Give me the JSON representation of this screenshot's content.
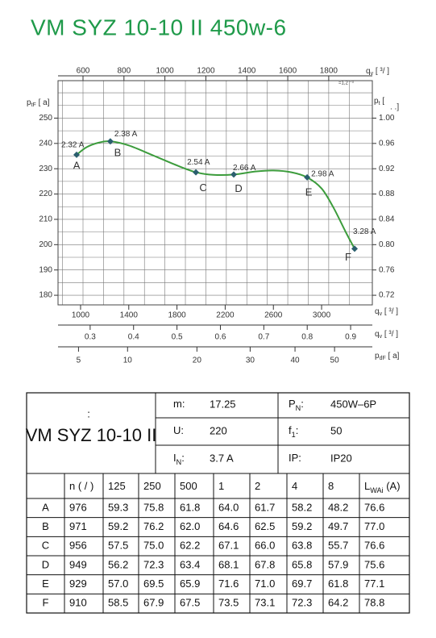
{
  "title": "VM SYZ 10-10 II 450w-6",
  "chart_data": {
    "type": "line",
    "x_top": {
      "label": {
        "main": "q",
        "sub": "v",
        "rest": " [    ³/     ]"
      },
      "note": "=1,2   ⁻³",
      "xlim": [
        478,
        2013
      ],
      "xticks": [
        600,
        800,
        1000,
        1200,
        1400,
        1600,
        1800
      ],
      "minor_xticks": [
        500,
        700,
        900,
        1100,
        1300,
        1500,
        1700,
        1900
      ]
    },
    "x_bottom": [
      {
        "label": {
          "main": "q",
          "sub": "v",
          "rest": " [    ³/   ]"
        },
        "xlim": [
          813,
          3421
        ],
        "xticks": [
          1000,
          1400,
          1800,
          2200,
          2600,
          3000
        ]
      },
      {
        "label": {
          "main": "q",
          "sub": "v",
          "rest": " [    ³/   ]"
        },
        "xlim": [
          0.226,
          0.95
        ],
        "xticks": [
          0.3,
          0.4,
          0.5,
          0.6,
          0.7,
          0.8,
          0.9
        ]
      },
      {
        "label": {
          "main": "p",
          "sub": "dF",
          "rest": " [   a]"
        },
        "xlim": [
          3.42,
          60.6
        ],
        "scale": "sqrt",
        "xticks": [
          5,
          10,
          20,
          30,
          40,
          50
        ]
      }
    ],
    "ylabel": {
      "main": "p",
      "sub": "tF",
      "rest": " [   a]"
    },
    "ylim": [
      176.2,
      264.8
    ],
    "yticks": [
      180,
      190,
      200,
      210,
      220,
      230,
      240,
      250
    ],
    "minor_yticks": [
      185,
      195,
      205,
      215,
      225,
      235,
      245,
      255,
      260
    ],
    "y2label": {
      "main": "p",
      "sub": "t",
      "rest": " [",
      "note": ".     .]"
    },
    "y2lim": [
      0.7048,
      1.0592
    ],
    "y2ticks": [
      0.72,
      0.76,
      {
        "value": 0.8,
        "label": "0.80"
      },
      0.84,
      0.88,
      0.92,
      0.96,
      {
        "value": 1.0,
        "label": "1.00"
      }
    ],
    "grid": true,
    "curve": {
      "color": "#3c9c3c",
      "x": [
        967,
        1050,
        1150,
        1247,
        1400,
        1600,
        1800,
        1957,
        2100,
        2271,
        2450,
        2600,
        2750,
        2880,
        3000,
        3100,
        3200,
        3274
      ],
      "y": [
        235.5,
        238.5,
        240.3,
        240.8,
        239.2,
        235.3,
        231.3,
        228.6,
        227.6,
        227.7,
        228.9,
        229.3,
        228.6,
        226.6,
        222.2,
        214.5,
        205.0,
        198.4
      ]
    },
    "points": {
      "color": "#2b5f6e",
      "names": [
        "A",
        "B",
        "C",
        "D",
        "E",
        "F"
      ],
      "currents": [
        "2.32 A",
        "2.38 A",
        "2.54 A",
        "2.66 A",
        "2.98 A",
        "3.28 A"
      ],
      "x": [
        967,
        1247,
        1957,
        2271,
        2880,
        3274
      ],
      "y": [
        235.5,
        240.8,
        228.6,
        227.7,
        226.6,
        198.4
      ]
    }
  },
  "spec": {
    "model_note": ":",
    "model": "VM SYZ 10-10 II",
    "cells": [
      {
        "label": {
          "main": "m:"
        },
        "value": "17.25"
      },
      {
        "label": {
          "main": "P",
          "sub": "N",
          "rest": ":"
        },
        "value": "450W–6P"
      },
      {
        "label": {
          "main": "U:"
        },
        "value": "220"
      },
      {
        "label": {
          "main": "f",
          "sub": "1",
          "rest": ":"
        },
        "value": "50"
      },
      {
        "label": {
          "main": "I",
          "sub": "N",
          "rest": ":"
        },
        "value": "3.7  A"
      },
      {
        "label": {
          "main": "IP:"
        },
        "value": "IP20"
      }
    ]
  },
  "table": {
    "header": [
      {
        "main": ""
      },
      {
        "main": "n ( /  )"
      },
      {
        "main": "125"
      },
      {
        "main": "250"
      },
      {
        "main": "500"
      },
      {
        "main": "1"
      },
      {
        "main": "2"
      },
      {
        "main": "4"
      },
      {
        "main": "8"
      },
      {
        "main": "L",
        "sub": "WAi",
        "rest": "     (A)"
      }
    ],
    "rows": [
      [
        "A",
        "976",
        "59.3",
        "75.8",
        "61.8",
        "64.0",
        "61.7",
        "58.2",
        "48.2",
        "76.6"
      ],
      [
        "B",
        "971",
        "59.2",
        "76.2",
        "62.0",
        "64.6",
        "62.5",
        "59.2",
        "49.7",
        "77.0"
      ],
      [
        "C",
        "956",
        "57.5",
        "75.0",
        "62.2",
        "67.1",
        "66.0",
        "63.8",
        "55.7",
        "76.6"
      ],
      [
        "D",
        "949",
        "56.2",
        "72.3",
        "63.4",
        "68.1",
        "67.8",
        "65.8",
        "57.9",
        "75.6"
      ],
      [
        "E",
        "929",
        "57.0",
        "69.5",
        "65.9",
        "71.6",
        "71.0",
        "69.7",
        "61.8",
        "77.1"
      ],
      [
        "F",
        "910",
        "58.5",
        "67.9",
        "67.5",
        "73.5",
        "73.1",
        "72.3",
        "64.2",
        "78.8"
      ]
    ]
  }
}
